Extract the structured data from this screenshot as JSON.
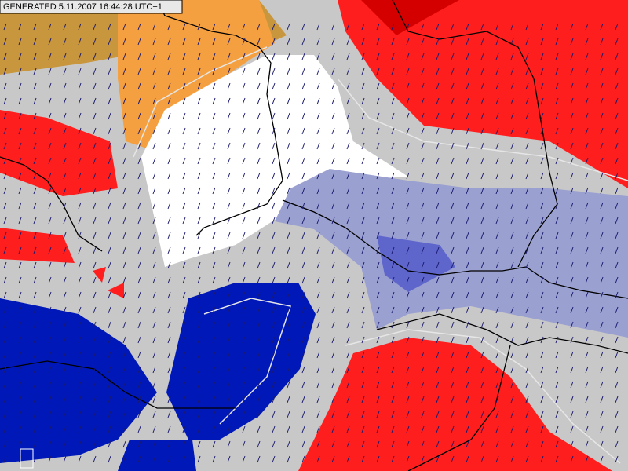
{
  "header": {
    "generated": "GENERATED 5.11.2007 16:44:28 UTC+1"
  }
}
